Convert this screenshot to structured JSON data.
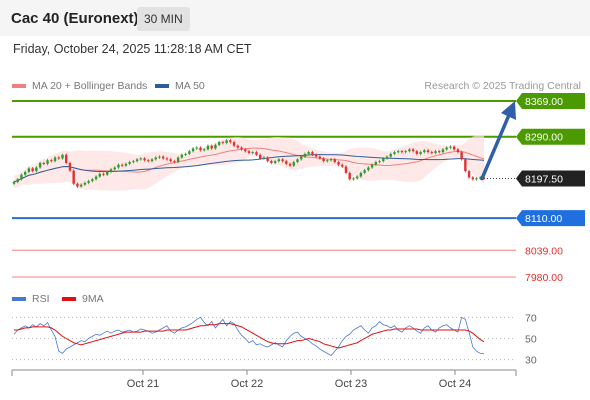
{
  "header": {
    "title": "Cac 40 (Euronext)",
    "interval": "30 MIN"
  },
  "timestamp": "Friday, October 24, 2025 11:28:18 AM CET",
  "attribution": "Research © 2025 Trading Central",
  "legend": {
    "main": [
      {
        "label": "MA 20 + Bollinger Bands",
        "color": "#f08080"
      },
      {
        "label": "MA 50",
        "color": "#2e5c9e"
      }
    ],
    "indicator": [
      {
        "label": "RSI",
        "color": "#4a78d0"
      },
      {
        "label": "9MA",
        "color": "#e01010"
      }
    ]
  },
  "chart_data": {
    "type": "candlestick",
    "x_tick_labels": [
      "Oct 21",
      "Oct 22",
      "Oct 23",
      "Oct 24"
    ],
    "price_range": [
      7960,
      8380
    ],
    "levels": [
      {
        "name": "resistance-2",
        "value": 8369.0,
        "label": "8369.00",
        "color": "#4a9a00",
        "style": "line",
        "label_bg": "#4a9a00",
        "label_fg": "#ffffff"
      },
      {
        "name": "resistance-1",
        "value": 8290.0,
        "label": "8290.00",
        "color": "#4a9a00",
        "style": "line",
        "label_bg": "#4a9a00",
        "label_fg": "#ffffff"
      },
      {
        "name": "last-price",
        "value": 8197.5,
        "label": "8197.50",
        "color": "#444444",
        "style": "dotted",
        "label_bg": "#222222",
        "label_fg": "#ffffff"
      },
      {
        "name": "support-1",
        "value": 8110.0,
        "label": "8110.00",
        "color": "#2a6fd6",
        "style": "line",
        "label_bg": "#1f6fe0",
        "label_fg": "#ffffff"
      },
      {
        "name": "support-2",
        "value": 8039.0,
        "label": "8039.00",
        "color": "#f08080",
        "style": "thin",
        "label_bg": "none",
        "label_fg": "#e03030"
      },
      {
        "name": "support-3",
        "value": 7980.0,
        "label": "7980.00",
        "color": "#f08080",
        "style": "thin",
        "label_bg": "none",
        "label_fg": "#e03030"
      }
    ],
    "projection": {
      "from": 8197.5,
      "to": 8369.0,
      "color": "#2f5fa8"
    },
    "colors": {
      "up": "#2e9a2e",
      "down": "#e03030",
      "band": "#fde0de",
      "ma20": "#f08080",
      "ma50": "#2e5c9e"
    },
    "close": [
      8190,
      8196,
      8206,
      8212,
      8220,
      8214,
      8222,
      8232,
      8230,
      8238,
      8236,
      8244,
      8242,
      8250,
      8232,
      8215,
      8186,
      8180,
      8184,
      8188,
      8192,
      8196,
      8202,
      8208,
      8206,
      8212,
      8218,
      8222,
      8228,
      8226,
      8230,
      8234,
      8236,
      8240,
      8242,
      8238,
      8236,
      8240,
      8244,
      8246,
      8242,
      8240,
      8236,
      8234,
      8244,
      8250,
      8252,
      8258,
      8264,
      8266,
      8260,
      8262,
      8270,
      8264,
      8272,
      8278,
      8276,
      8282,
      8278,
      8270,
      8266,
      8262,
      8258,
      8254,
      8256,
      8250,
      8242,
      8244,
      8236,
      8232,
      8236,
      8240,
      8236,
      8230,
      8226,
      8234,
      8240,
      8246,
      8252,
      8256,
      8250,
      8246,
      8242,
      8236,
      8238,
      8240,
      8234,
      8228,
      8224,
      8210,
      8196,
      8198,
      8202,
      8210,
      8216,
      8222,
      8228,
      8234,
      8236,
      8242,
      8246,
      8252,
      8256,
      8258,
      8256,
      8258,
      8262,
      8258,
      8252,
      8256,
      8260,
      8256,
      8254,
      8258,
      8256,
      8262,
      8266,
      8268,
      8262,
      8256,
      8240,
      8214,
      8200,
      8196,
      8198,
      8200,
      8197
    ],
    "rsi": {
      "ticks": [
        70,
        50,
        30
      ],
      "range": [
        25,
        75
      ],
      "rsi": [
        54,
        58,
        60,
        62,
        60,
        63,
        61,
        64,
        62,
        65,
        58,
        52,
        38,
        36,
        40,
        42,
        44,
        46,
        48,
        47,
        50,
        52,
        54,
        53,
        55,
        57,
        55,
        57,
        58,
        56,
        57,
        58,
        56,
        57,
        59,
        58,
        57,
        55,
        56,
        58,
        60,
        62,
        57,
        55,
        58,
        60,
        61,
        63,
        65,
        68,
        70,
        65,
        62,
        66,
        60,
        64,
        68,
        62,
        66,
        64,
        58,
        53,
        50,
        46,
        48,
        44,
        45,
        43,
        42,
        44,
        46,
        44,
        42,
        48,
        52,
        55,
        56,
        52,
        50,
        48,
        45,
        43,
        40,
        38,
        36,
        34,
        38,
        42,
        48,
        52,
        54,
        58,
        60,
        62,
        58,
        55,
        60,
        62,
        66,
        63,
        62,
        60,
        62,
        58,
        56,
        60,
        62,
        60,
        57,
        55,
        60,
        62,
        58,
        56,
        60,
        62,
        63,
        60,
        58,
        56,
        70,
        68,
        56,
        42,
        38,
        36,
        36
      ],
      "ma9": [
        58,
        58,
        59,
        60,
        60,
        61,
        61,
        61,
        61,
        61,
        60,
        58,
        55,
        52,
        50,
        48,
        46,
        45,
        44,
        45,
        46,
        47,
        48,
        49,
        50,
        51,
        52,
        53,
        54,
        55,
        56,
        56,
        56,
        56,
        56,
        57,
        57,
        57,
        57,
        57,
        57,
        58,
        58,
        58,
        58,
        58,
        58,
        59,
        60,
        61,
        62,
        62,
        63,
        63,
        63,
        64,
        64,
        64,
        64,
        63,
        62,
        61,
        59,
        57,
        55,
        53,
        51,
        49,
        47,
        46,
        45,
        45,
        45,
        45,
        46,
        47,
        48,
        48,
        49,
        50,
        49,
        48,
        47,
        45,
        44,
        43,
        42,
        41,
        42,
        43,
        44,
        45,
        46,
        48,
        50,
        52,
        54,
        55,
        56,
        57,
        58,
        58,
        59,
        59,
        59,
        59,
        59,
        59,
        59,
        58,
        58,
        58,
        58,
        58,
        58,
        58,
        58,
        58,
        58,
        58,
        58,
        58,
        57,
        55,
        52,
        49,
        47
      ]
    }
  }
}
